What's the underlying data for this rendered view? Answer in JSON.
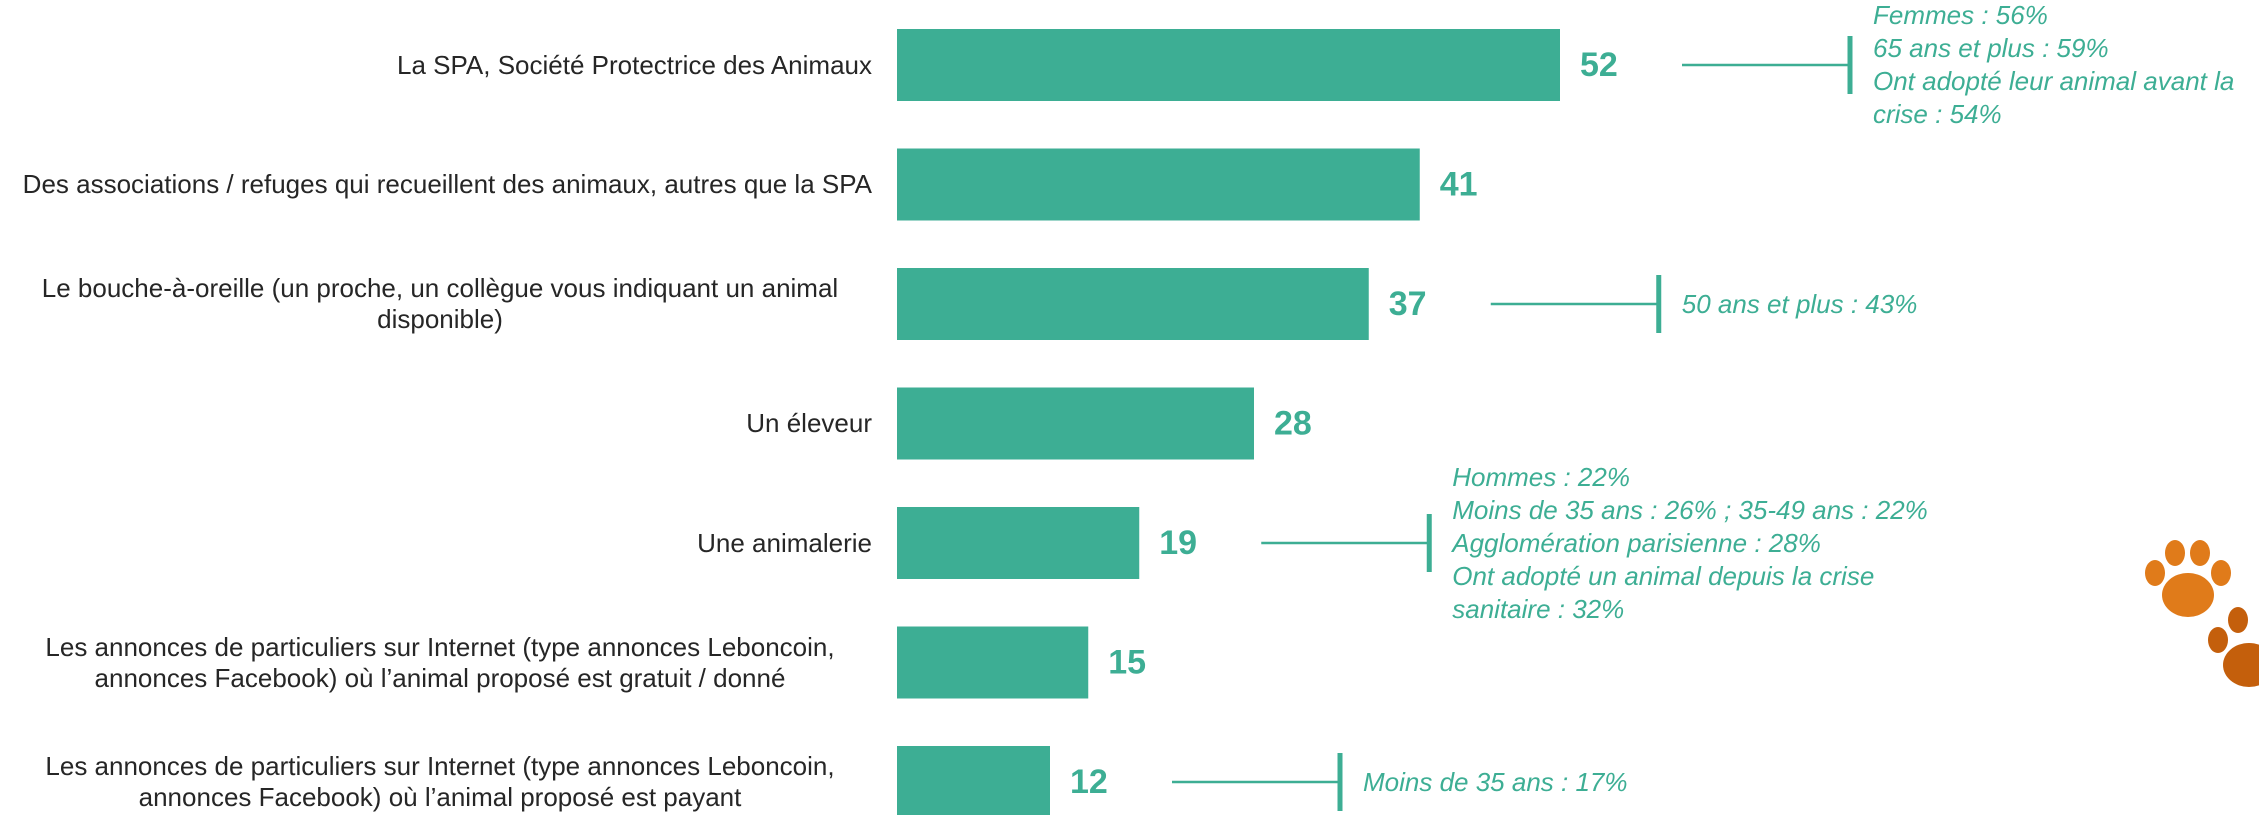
{
  "chart_data": {
    "type": "bar",
    "orientation": "horizontal",
    "color": "#3dae94",
    "categories": [
      "La SPA, Société Protectrice des Animaux",
      "Des associations / refuges qui recueillent des animaux, autres que la SPA",
      "Le bouche-à-oreille (un proche, un collègue vous indiquant un animal disponible)",
      "Un éleveur",
      "Une animalerie",
      "Les annonces de particuliers sur Internet (type annonces Leboncoin, annonces Facebook) où l’animal proposé est gratuit / donné",
      "Les annonces de particuliers sur Internet (type annonces Leboncoin, annonces Facebook) où l’animal proposé est payant"
    ],
    "values": [
      52,
      41,
      37,
      28,
      19,
      15,
      12
    ],
    "annotations": [
      [
        "Femmes : 56%",
        "65 ans et plus : 59%",
        "Ont adopté leur animal avant la crise : 54%"
      ],
      null,
      [
        "50 ans et plus : 43%"
      ],
      null,
      [
        "Hommes : 22%",
        "Moins de 35 ans : 26% ; 35-49 ans : 22%",
        "Agglomération parisienne : 28%",
        "Ont adopté un animal depuis la crise sanitaire : 32%"
      ],
      null,
      [
        "Moins de 35 ans : 17%"
      ]
    ]
  }
}
